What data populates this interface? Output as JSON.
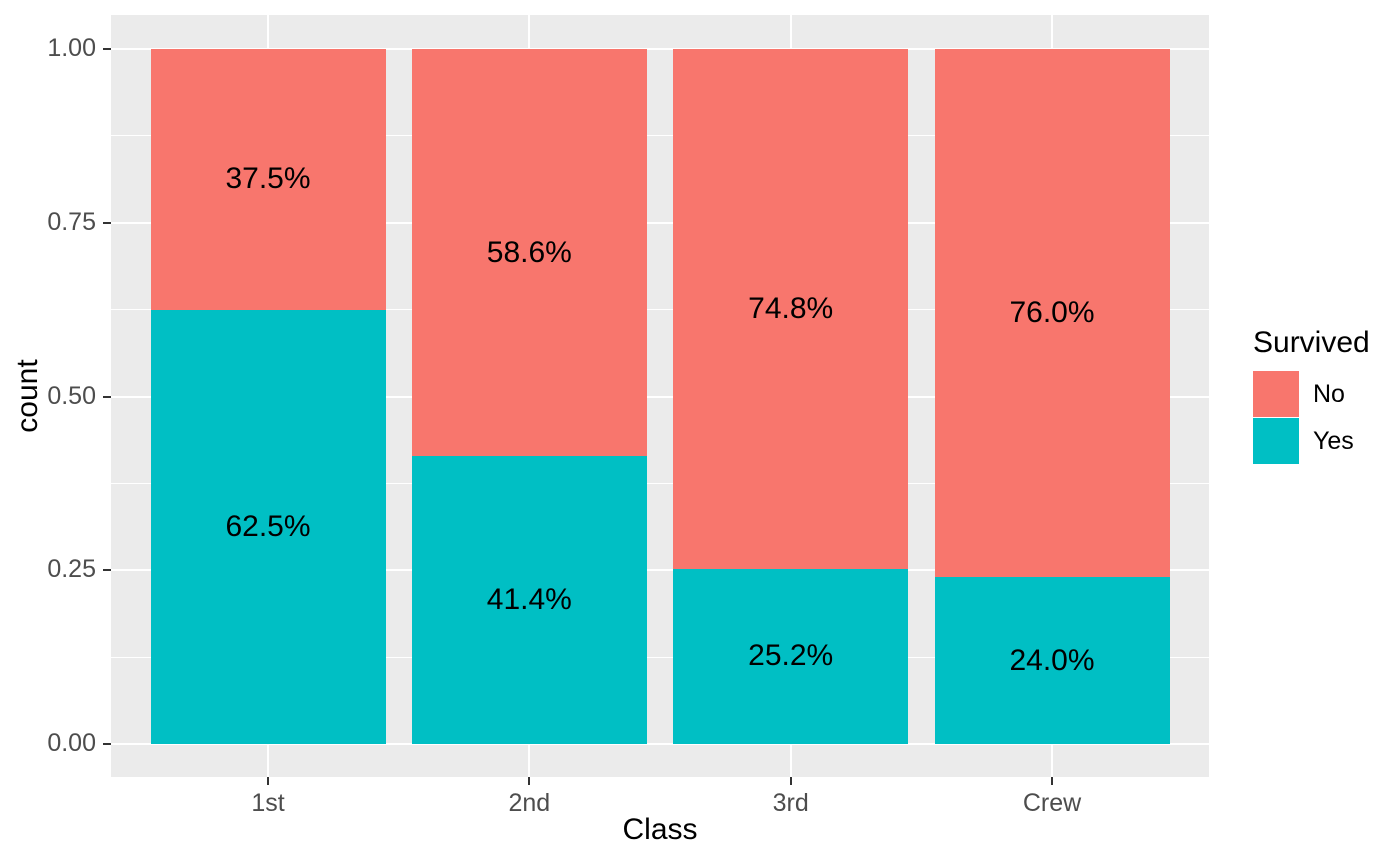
{
  "figure": {
    "background": "#FFFFFF",
    "panel_background": "#EBEBEB",
    "grid_color": "#FFFFFF",
    "tick_label_color": "#4D4D4D",
    "tick_mark_color": "#333333",
    "text_color": "#000000"
  },
  "chart_data": {
    "type": "bar",
    "stacked": true,
    "position": "fill",
    "xlabel": "Class",
    "ylabel": "count",
    "categories": [
      "1st",
      "2nd",
      "3rd",
      "Crew"
    ],
    "series": [
      {
        "name": "No",
        "color": "#F8766D",
        "values": [
          0.375,
          0.586,
          0.748,
          0.76
        ],
        "labels": [
          "37.5%",
          "58.6%",
          "74.8%",
          "76.0%"
        ]
      },
      {
        "name": "Yes",
        "color": "#00BFC4",
        "values": [
          0.625,
          0.414,
          0.252,
          0.24
        ],
        "labels": [
          "62.5%",
          "41.4%",
          "25.2%",
          "24.0%"
        ]
      }
    ],
    "ylim": [
      0,
      1
    ],
    "y_tick_values": [
      0,
      0.25,
      0.5,
      0.75,
      1
    ],
    "y_tick_labels": [
      "0.00",
      "0.25",
      "0.50",
      "0.75",
      "1.00"
    ],
    "y_minor_values": [
      0.125,
      0.375,
      0.625,
      0.875
    ],
    "grid": true,
    "legend": {
      "title": "Survived",
      "position": "right",
      "entries": [
        {
          "label": "No",
          "color": "#F8766D"
        },
        {
          "label": "Yes",
          "color": "#00BFC4"
        }
      ]
    }
  }
}
